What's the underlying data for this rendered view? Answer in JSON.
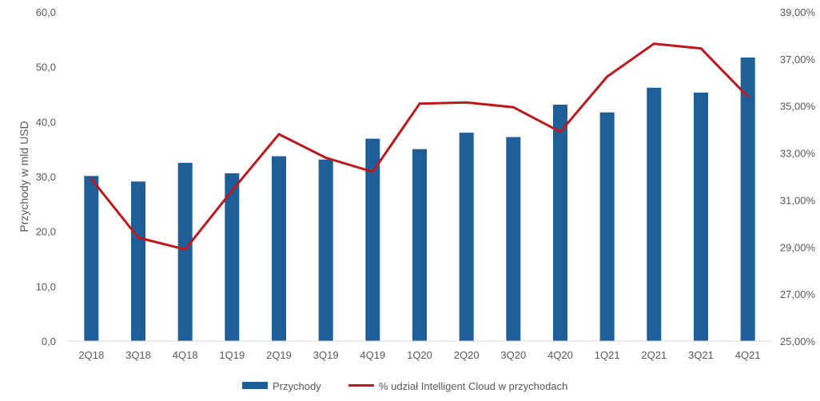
{
  "chart_data": {
    "type": "bar",
    "categories": [
      "2Q18",
      "3Q18",
      "4Q18",
      "1Q19",
      "2Q19",
      "3Q19",
      "4Q19",
      "1Q20",
      "2Q20",
      "3Q20",
      "4Q20",
      "1Q21",
      "2Q21",
      "3Q21",
      "4Q21"
    ],
    "series": [
      {
        "name": "Przychody",
        "type": "bar",
        "axis": "left",
        "color": "#1F5F99",
        "values": [
          30.1,
          29.1,
          32.5,
          30.6,
          33.7,
          33.1,
          36.9,
          35.0,
          38.0,
          37.2,
          43.1,
          41.7,
          46.2,
          45.3,
          51.7
        ]
      },
      {
        "name": "% udział Intelligent Cloud w przychodach",
        "type": "line",
        "axis": "right",
        "color": "#C0171D",
        "values": [
          31.9,
          29.4,
          28.9,
          31.4,
          33.8,
          32.8,
          32.2,
          35.1,
          35.15,
          34.95,
          33.9,
          36.25,
          37.65,
          37.45,
          35.4
        ]
      }
    ],
    "ylabel": "Przychody w mld USD",
    "ylim": [
      0,
      60
    ],
    "y_ticks": [
      "0,0",
      "10,0",
      "20,0",
      "30,0",
      "40,0",
      "50,0",
      "60,0"
    ],
    "y2lim": [
      25,
      39
    ],
    "y2_ticks": [
      "25,00%",
      "27,00%",
      "29,00%",
      "31,00%",
      "33,00%",
      "35,00%",
      "37,00%",
      "39,00%"
    ],
    "grid": false,
    "legend_position": "bottom"
  }
}
